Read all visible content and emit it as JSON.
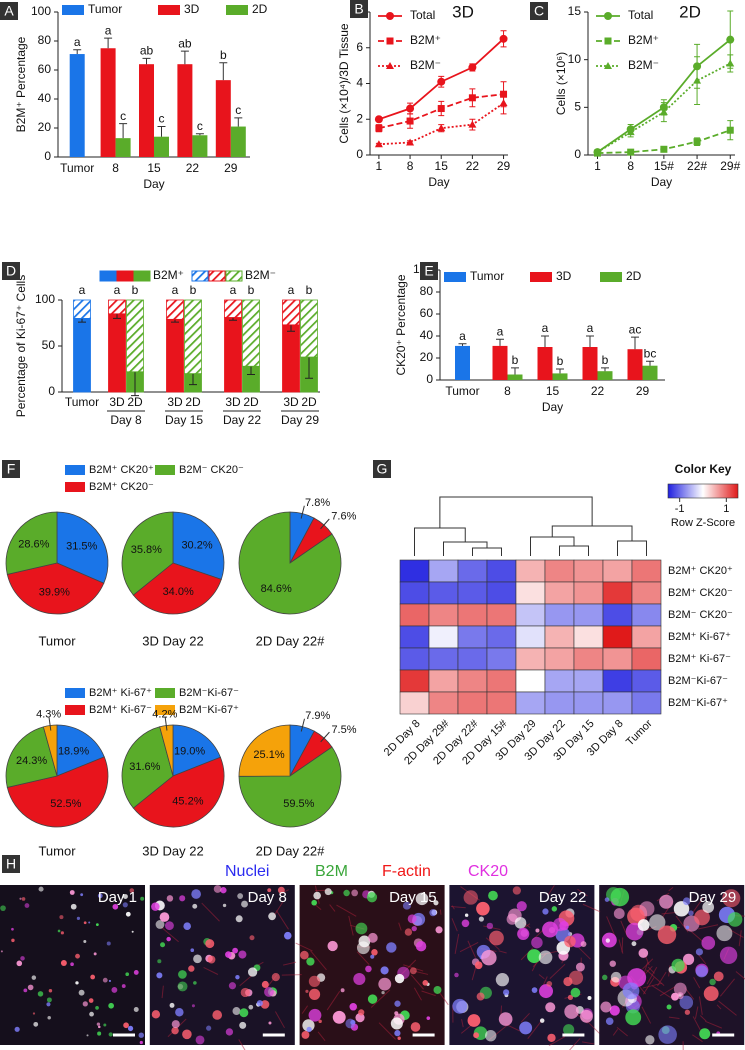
{
  "chart_data": [
    {
      "panel": "A",
      "type": "bar",
      "ylabel": "B2M⁺ Percentage",
      "xlabel": "Day",
      "categories": [
        "Tumor",
        "8",
        "15",
        "22",
        "29"
      ],
      "ylim": [
        0,
        100
      ],
      "yticks": [
        0,
        20,
        40,
        60,
        80,
        100
      ],
      "series": [
        {
          "name": "Tumor",
          "color": "#1a75e8",
          "values": [
            71,
            null,
            null,
            null,
            null
          ],
          "errors": [
            3,
            null,
            null,
            null,
            null
          ],
          "letters": [
            "a",
            null,
            null,
            null,
            null
          ]
        },
        {
          "name": "3D",
          "color": "#e8141c",
          "values": [
            null,
            75,
            64,
            64,
            53
          ],
          "errors": [
            null,
            7,
            4,
            9,
            12
          ],
          "letters": [
            null,
            "a",
            "ab",
            "ab",
            "b"
          ]
        },
        {
          "name": "2D",
          "color": "#5aac2a",
          "values": [
            null,
            13,
            14,
            15,
            21
          ],
          "errors": [
            null,
            10,
            7,
            1,
            6
          ],
          "letters": [
            null,
            "c",
            "c",
            "c",
            "c"
          ]
        }
      ]
    },
    {
      "panel": "B",
      "type": "line",
      "title": "3D",
      "xlabel": "Day",
      "ylabel": "Cells (×10⁴)/3D Tissue",
      "x": [
        1,
        8,
        15,
        22,
        29
      ],
      "xlim": [
        -1,
        30
      ],
      "xticks": [
        1,
        8,
        15,
        22,
        29
      ],
      "ylim": [
        0,
        8
      ],
      "yticks": [
        0,
        2,
        4,
        6,
        8
      ],
      "series": [
        {
          "name": "Total",
          "color": "#e8141c",
          "dash": "solid",
          "marker": "circle",
          "values": [
            2.0,
            2.6,
            4.1,
            4.9,
            6.5
          ],
          "errors": [
            0.1,
            0.3,
            0.3,
            0.2,
            0.45
          ]
        },
        {
          "name": "B2M⁺",
          "color": "#e8141c",
          "dash": "dashed",
          "marker": "square",
          "values": [
            1.5,
            1.9,
            2.6,
            3.2,
            3.4
          ],
          "errors": [
            0.2,
            0.4,
            0.4,
            0.5,
            0.7
          ]
        },
        {
          "name": "B2M⁻",
          "color": "#e8141c",
          "dash": "dotted",
          "marker": "triangle",
          "values": [
            0.6,
            0.7,
            1.5,
            1.7,
            2.9
          ],
          "errors": [
            0.05,
            0.1,
            0.2,
            0.3,
            0.6
          ]
        }
      ]
    },
    {
      "panel": "C",
      "type": "line",
      "title": "2D",
      "xlabel": "Day",
      "ylabel": "Cells (×10⁶)",
      "x": [
        1,
        8,
        15,
        22,
        29
      ],
      "xlim": [
        -1,
        30
      ],
      "xticks": [
        1,
        8,
        {
          "value": 15,
          "label": "15#"
        },
        {
          "value": 22,
          "label": "22#"
        },
        {
          "value": 29,
          "label": "29#"
        }
      ],
      "ylim": [
        0,
        15
      ],
      "yticks": [
        0,
        5,
        10,
        15
      ],
      "series": [
        {
          "name": "Total",
          "color": "#5aac2a",
          "dash": "solid",
          "marker": "circle",
          "values": [
            0.3,
            2.7,
            5.0,
            9.3,
            12.1
          ],
          "errors": [
            0.1,
            0.5,
            0.8,
            2.3,
            3.0
          ]
        },
        {
          "name": "B2M⁺",
          "color": "#5aac2a",
          "dash": "dashed",
          "marker": "square",
          "values": [
            0.2,
            0.3,
            0.6,
            1.4,
            2.6
          ],
          "errors": [
            0.05,
            0.1,
            0.2,
            0.4,
            1.0
          ]
        },
        {
          "name": "B2M⁻",
          "color": "#5aac2a",
          "dash": "dotted",
          "marker": "triangle",
          "values": [
            0.3,
            2.4,
            4.5,
            7.8,
            9.6
          ],
          "errors": [
            0.1,
            0.5,
            1.0,
            2.5,
            0.9
          ]
        }
      ]
    },
    {
      "panel": "D",
      "type": "stacked_bar",
      "ylabel": "Percentage of Ki-67⁺ Cells",
      "categories": [
        "Tumor",
        "3D",
        "2D",
        "3D",
        "2D",
        "3D",
        "2D",
        "3D",
        "2D"
      ],
      "groups": [
        "Day 8",
        "Day 15",
        "Day 22",
        "Day 29"
      ],
      "bar_colors": [
        "#1a75e8",
        "#e8141c",
        "#5aac2a",
        "#e8141c",
        "#5aac2a",
        "#e8141c",
        "#5aac2a",
        "#e8141c",
        "#5aac2a"
      ],
      "ylim": [
        0,
        100
      ],
      "yticks": [
        0,
        50,
        100
      ],
      "series": [
        {
          "name": "B2M⁺",
          "pattern": "solid",
          "values": [
            80,
            85,
            22,
            79,
            20,
            81,
            28,
            73,
            38
          ],
          "errors": [
            4,
            5,
            26,
            3,
            12,
            3,
            9,
            7,
            23
          ]
        },
        {
          "name": "B2M⁻",
          "pattern": "hatch",
          "values": [
            20,
            15,
            78,
            21,
            80,
            19,
            72,
            27,
            62
          ]
        }
      ],
      "letters": [
        "a",
        "a",
        "b",
        "a",
        "b",
        "a",
        "b",
        "a",
        "b"
      ]
    },
    {
      "panel": "E",
      "type": "bar",
      "ylabel": "CK20⁺ Percentage",
      "xlabel": "Day",
      "categories": [
        "Tumor",
        "8",
        "15",
        "22",
        "29"
      ],
      "ylim": [
        0,
        100
      ],
      "yticks": [
        0,
        20,
        40,
        60,
        80,
        100
      ],
      "series": [
        {
          "name": "Tumor",
          "color": "#1a75e8",
          "values": [
            31,
            null,
            null,
            null,
            null
          ],
          "errors": [
            2,
            null,
            null,
            null,
            null
          ],
          "letters": [
            "a",
            null,
            null,
            null,
            null
          ]
        },
        {
          "name": "3D",
          "color": "#e8141c",
          "values": [
            null,
            31,
            30,
            30,
            28
          ],
          "errors": [
            null,
            6,
            10,
            10,
            11
          ],
          "letters": [
            null,
            "a",
            "a",
            "a",
            "ac"
          ]
        },
        {
          "name": "2D",
          "color": "#5aac2a",
          "values": [
            null,
            5,
            6,
            8,
            13
          ],
          "errors": [
            null,
            6,
            4,
            3,
            4
          ],
          "letters": [
            null,
            "b",
            "b",
            "b",
            "bc"
          ]
        }
      ]
    },
    {
      "panel": "F",
      "type": "pie",
      "rows": [
        {
          "legend": [
            "B2M⁺ CK20⁺",
            "B2M⁺ CK20⁻",
            "B2M⁻ CK20⁻"
          ],
          "colors": [
            "#1a75e8",
            "#e8141c",
            "#5aac2a"
          ],
          "pies": [
            {
              "title": "Tumor",
              "values": [
                31.5,
                39.9,
                28.6
              ],
              "value_labels": [
                "31.5%",
                "39.9%",
                "28.6%"
              ]
            },
            {
              "title": "3D Day 22",
              "values": [
                30.2,
                34.0,
                35.8
              ],
              "value_labels": [
                "30.2%",
                "34.0%",
                "35.8%"
              ]
            },
            {
              "title": "2D Day 22#",
              "values": [
                7.8,
                7.6,
                84.6
              ],
              "value_labels": [
                "7.8%",
                "7.6%",
                "84.6%"
              ]
            }
          ]
        },
        {
          "legend": [
            "B2M⁺ Ki-67⁺",
            "B2M⁺ Ki-67⁻",
            "B2M⁻Ki-67⁻",
            "B2M⁻Ki-67⁺"
          ],
          "colors": [
            "#1a75e8",
            "#e8141c",
            "#5aac2a",
            "#f5a20a"
          ],
          "pies": [
            {
              "title": "Tumor",
              "values": [
                18.9,
                52.5,
                24.3,
                4.3
              ],
              "value_labels": [
                "18.9%",
                "52.5%",
                "24.3%",
                "4.3%"
              ]
            },
            {
              "title": "3D Day 22",
              "values": [
                19.0,
                45.2,
                31.6,
                4.2
              ],
              "value_labels": [
                "19.0%",
                "45.2%",
                "31.6%",
                "4.2%"
              ]
            },
            {
              "title": "2D Day 22#",
              "values": [
                7.9,
                7.5,
                59.5,
                25.1
              ],
              "value_labels": [
                "7.9%",
                "7.5%",
                "59.5%",
                "25.1%"
              ]
            }
          ]
        }
      ]
    },
    {
      "panel": "G",
      "type": "heatmap",
      "title": "Color Key",
      "colorbar_label": "Row Z-Score",
      "zlim": [
        -1.5,
        1.5
      ],
      "zticks": [
        -1,
        1
      ],
      "colors": [
        "#2020e0",
        "#ffffff",
        "#e01a1a"
      ],
      "rows": [
        "B2M⁺ CK20⁺",
        "B2M⁺ CK20⁻",
        "B2M⁻ CK20⁻",
        "B2M⁺ Ki-67⁺",
        "B2M⁺ Ki-67⁻",
        "B2M⁻Ki-67⁻",
        "B2M⁻Ki-67⁺"
      ],
      "columns": [
        "2D Day 8",
        "2D Day 29#",
        "2D Day 22#",
        "2D Day 15#",
        "3D Day 29",
        "3D Day 22",
        "3D Day 15",
        "3D Day 8",
        "Tumor"
      ],
      "values": [
        [
          -1.4,
          -0.6,
          -1.0,
          -1.2,
          0.5,
          0.8,
          0.7,
          0.6,
          0.9
        ],
        [
          -1.2,
          -1.1,
          -1.1,
          -1.2,
          0.2,
          0.6,
          0.7,
          1.3,
          0.8
        ],
        [
          1.0,
          0.8,
          0.9,
          0.9,
          -0.4,
          -0.7,
          -0.7,
          -1.2,
          -0.8
        ],
        [
          -1.2,
          -0.1,
          -0.9,
          -1.0,
          -0.2,
          0.5,
          0.2,
          1.6,
          0.6
        ],
        [
          -1.1,
          -1.0,
          -1.0,
          -0.9,
          0.5,
          0.6,
          0.8,
          0.7,
          1.0
        ],
        [
          1.3,
          0.6,
          0.8,
          0.9,
          0.0,
          -0.6,
          -0.6,
          -1.3,
          -1.1
        ],
        [
          0.3,
          0.8,
          0.9,
          0.9,
          -0.6,
          -0.7,
          -0.7,
          -0.7,
          -0.9
        ]
      ]
    }
  ],
  "images": {
    "panel": "H",
    "channels": [
      {
        "name": "Nuclei",
        "color": "#2b2bf0"
      },
      {
        "name": "B2M",
        "color": "#3aa63a"
      },
      {
        "name": "F-actin",
        "color": "#f01818"
      },
      {
        "name": "CK20",
        "color": "#e030e0"
      }
    ],
    "days": [
      "Day 1",
      "Day 8",
      "Day 15",
      "Day 22",
      "Day 29"
    ]
  }
}
